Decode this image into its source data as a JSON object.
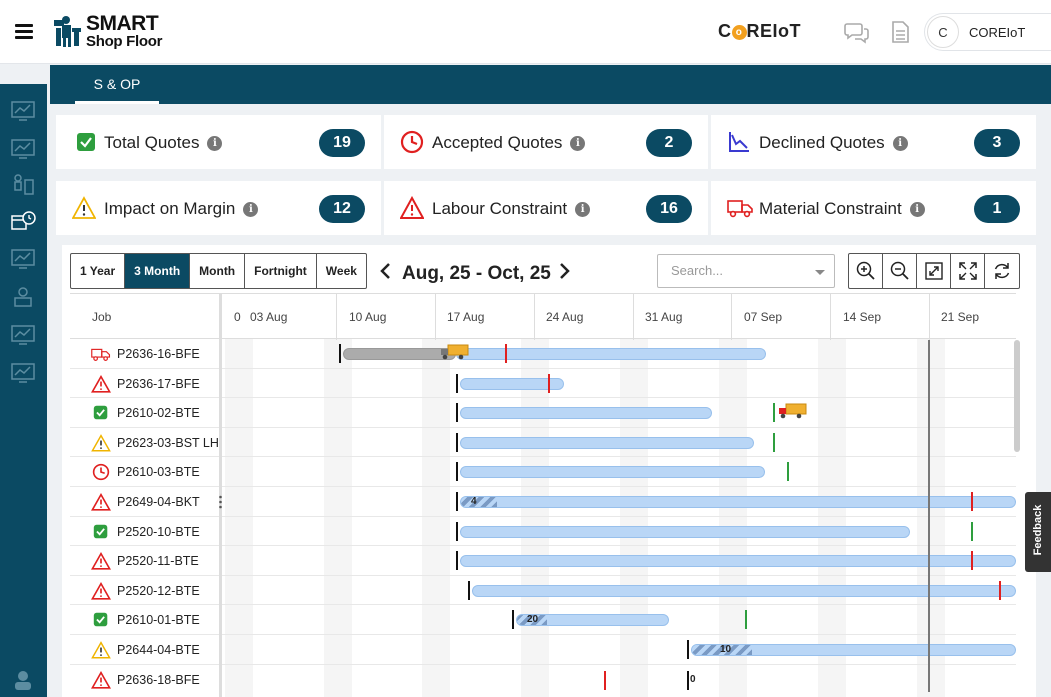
{
  "header": {
    "logo_line1": "SMART",
    "logo_line2": "Shop Floor",
    "brand_logo_text": "C",
    "brand_logo_o": "o",
    "brand_logo_rest": "REIoT",
    "user_initial": "C",
    "user_name": "COREIoT"
  },
  "tabs": [
    {
      "label": "S & OP",
      "active": true
    }
  ],
  "summary_cards": [
    {
      "label": "Total Quotes",
      "count": "19",
      "icon": "check-icon",
      "color": "#2e9e3e"
    },
    {
      "label": "Accepted Quotes",
      "count": "2",
      "icon": "clock-icon",
      "color": "#e02020"
    },
    {
      "label": "Declined Quotes",
      "count": "3",
      "icon": "declining-chart-icon",
      "color": "#3a3ad0"
    },
    {
      "label": "Impact on Margin",
      "count": "12",
      "icon": "warning-yellow-icon",
      "color": "#f0b400"
    },
    {
      "label": "Labour Constraint",
      "count": "16",
      "icon": "warning-red-icon",
      "color": "#e02020"
    },
    {
      "label": "Material Constraint",
      "count": "1",
      "icon": "truck-icon",
      "color": "#e02020"
    }
  ],
  "gantt": {
    "ranges": [
      "1 Year",
      "3 Month",
      "Month",
      "Fortnight",
      "Week"
    ],
    "active_range": "3 Month",
    "period_label": "Aug, 25 - Oct, 25",
    "search_placeholder": "Search...",
    "column_job": "Job",
    "partial_first_tick": "0",
    "date_ticks": [
      "03 Aug",
      "10 Aug",
      "17 Aug",
      "24 Aug",
      "31 Aug",
      "07 Sep",
      "14 Sep",
      "21 Sep"
    ],
    "rows": [
      {
        "job": "P2636-16-BFE",
        "icon": "truck-icon"
      },
      {
        "job": "P2636-17-BFE",
        "icon": "warning-red-icon"
      },
      {
        "job": "P2610-02-BTE",
        "icon": "check-icon"
      },
      {
        "job": "P2623-03-BST LH",
        "icon": "warning-yellow-icon"
      },
      {
        "job": "P2610-03-BTE",
        "icon": "clock-icon"
      },
      {
        "job": "P2649-04-BKT",
        "icon": "warning-red-icon",
        "bar_label": "4"
      },
      {
        "job": "P2520-10-BTE",
        "icon": "check-icon"
      },
      {
        "job": "P2520-11-BTE",
        "icon": "warning-red-icon"
      },
      {
        "job": "P2520-12-BTE",
        "icon": "warning-red-icon"
      },
      {
        "job": "P2610-01-BTE",
        "icon": "check-icon",
        "bar_label": "20"
      },
      {
        "job": "P2644-04-BTE",
        "icon": "warning-yellow-icon",
        "bar_label": "10"
      },
      {
        "job": "P2636-18-BFE",
        "icon": "warning-red-icon",
        "bar_label": "0"
      }
    ]
  },
  "feedback_label": "Feedback"
}
